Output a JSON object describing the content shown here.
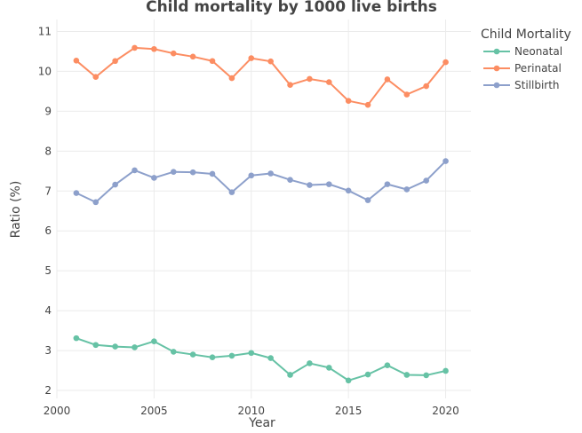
{
  "chart_data": {
    "type": "line",
    "title": "Child mortality by 1000 live births",
    "xlabel": "Year",
    "ylabel": "Ratio (%)",
    "xlim": [
      2000,
      2021.3
    ],
    "ylim": [
      1.8,
      11.3
    ],
    "xticks": [
      2000,
      2005,
      2010,
      2015,
      2020
    ],
    "yticks": [
      2,
      3,
      4,
      5,
      6,
      7,
      8,
      9,
      10,
      11
    ],
    "grid": true,
    "legend": {
      "title": "Child Mortality",
      "position": "top-right"
    },
    "x": [
      2001,
      2002,
      2003,
      2004,
      2005,
      2006,
      2007,
      2008,
      2009,
      2010,
      2011,
      2012,
      2013,
      2014,
      2015,
      2016,
      2017,
      2018,
      2019,
      2020
    ],
    "series": [
      {
        "name": "Neonatal",
        "color": "#66c2a5",
        "values": [
          3.31,
          3.14,
          3.1,
          3.08,
          3.23,
          2.97,
          2.9,
          2.83,
          2.87,
          2.94,
          2.81,
          2.39,
          2.68,
          2.57,
          2.25,
          2.4,
          2.63,
          2.39,
          2.38,
          2.49
        ]
      },
      {
        "name": "Perinatal",
        "color": "#fc8d62",
        "values": [
          10.27,
          9.86,
          10.26,
          10.59,
          10.56,
          10.45,
          10.37,
          10.26,
          9.83,
          10.33,
          10.25,
          9.66,
          9.81,
          9.73,
          9.26,
          9.16,
          9.8,
          9.42,
          9.63,
          10.23
        ]
      },
      {
        "name": "Stillbirth",
        "color": "#8da0cb",
        "values": [
          6.95,
          6.72,
          7.16,
          7.52,
          7.33,
          7.48,
          7.47,
          7.43,
          6.97,
          7.39,
          7.44,
          7.28,
          7.15,
          7.17,
          7.01,
          6.77,
          7.17,
          7.04,
          7.26,
          7.75
        ]
      }
    ]
  }
}
